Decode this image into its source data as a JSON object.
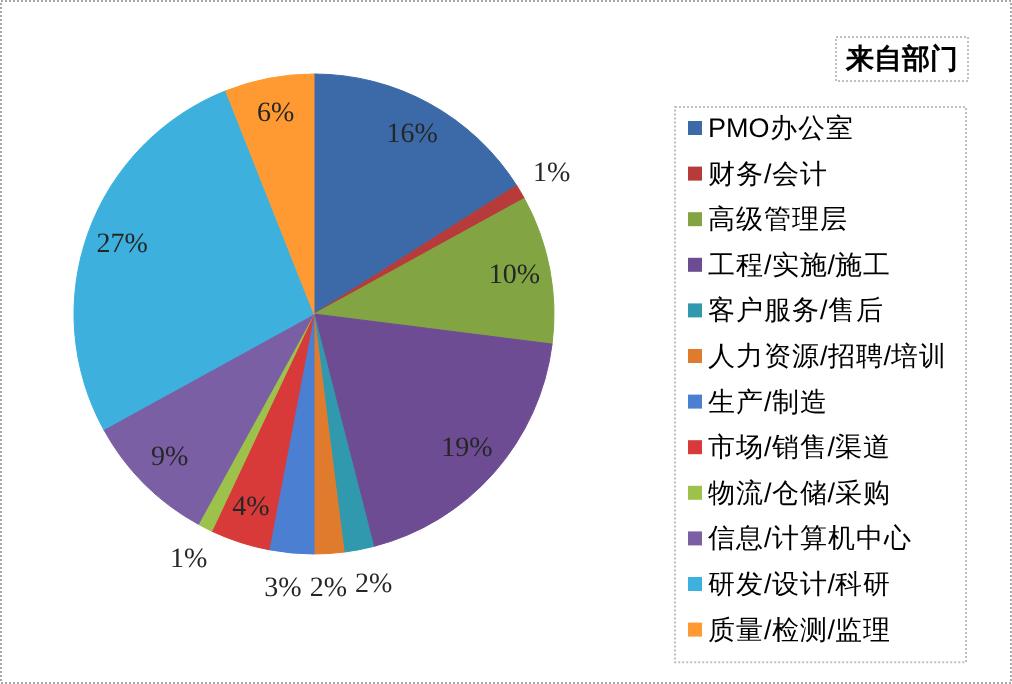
{
  "chart_data": {
    "type": "pie",
    "legend_title": "来自部门",
    "legend": "right",
    "categories": [
      "PMO办公室",
      "财务/会计",
      "高级管理层",
      "工程/实施/施工",
      "客户服务/售后",
      "人力资源/招聘/培训",
      "生产/制造",
      "市场/销售/渠道",
      "物流/仓储/采购",
      "信息/计算机中心",
      "研发/设计/科研",
      "质量/检测/监理"
    ],
    "values": [
      16,
      1,
      10,
      19,
      2,
      2,
      3,
      4,
      1,
      9,
      27,
      6
    ],
    "value_labels": [
      "16%",
      "1%",
      "10%",
      "19%",
      "2%",
      "2%",
      "3%",
      "4%",
      "1%",
      "9%",
      "27%",
      "6%"
    ],
    "colors": [
      "#3c6aa8",
      "#b73b3b",
      "#82a443",
      "#6e4c93",
      "#3199ae",
      "#e07b2d",
      "#4a7fd2",
      "#d83a3a",
      "#9cc24c",
      "#7b5fa5",
      "#3db0de",
      "#ff9a33"
    ]
  }
}
